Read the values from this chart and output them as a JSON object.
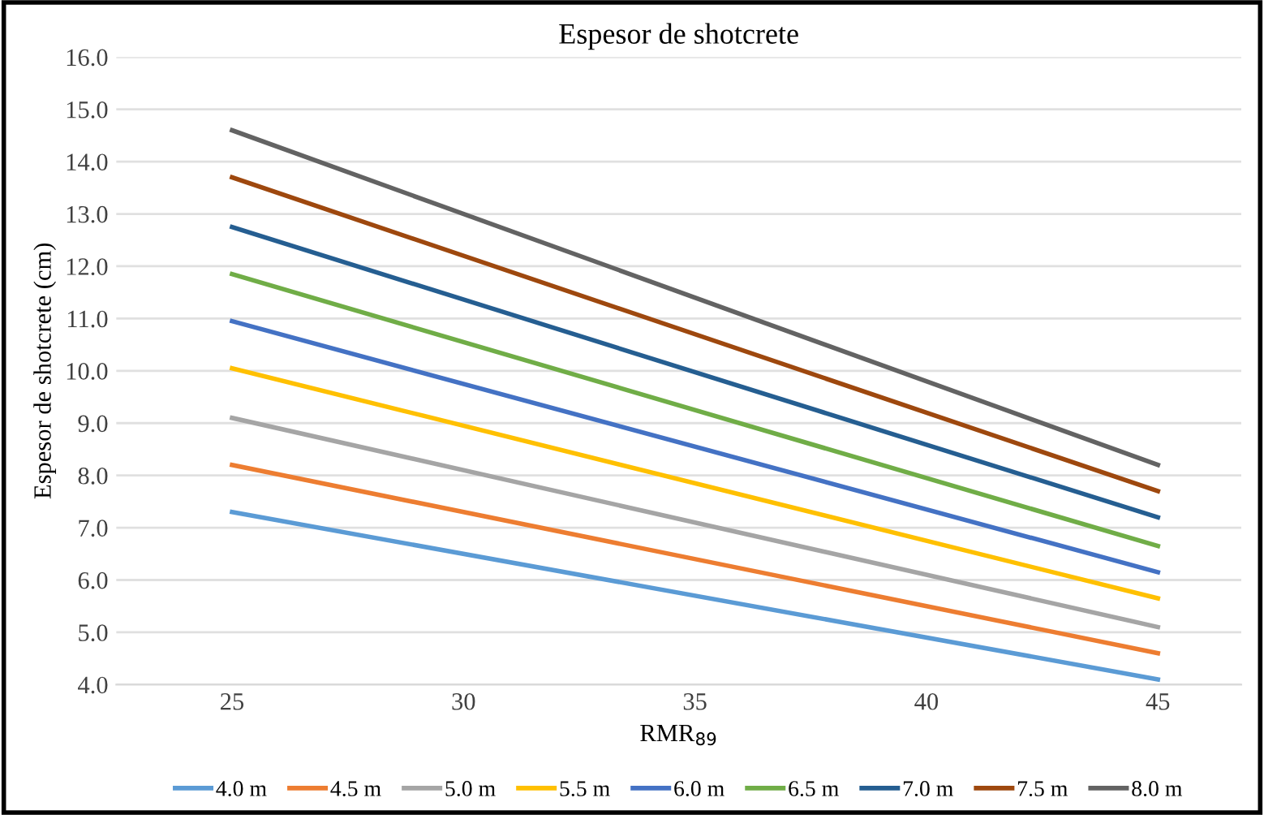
{
  "chart_data": {
    "type": "line",
    "title": "Espesor de shotcrete",
    "xlabel": "RMR$_{89}$",
    "ylabel": "Espesor de shotcrete (cm)",
    "x": [
      25,
      45
    ],
    "series": [
      {
        "name": "4.0 m",
        "color": "#5b9bd5",
        "values": [
          7.3,
          4.1
        ]
      },
      {
        "name": "4.5 m",
        "color": "#ed7d31",
        "values": [
          8.2,
          4.6
        ]
      },
      {
        "name": "5.0 m",
        "color": "#a5a5a5",
        "values": [
          9.1,
          5.1
        ]
      },
      {
        "name": "5.5 m",
        "color": "#ffc000",
        "values": [
          10.05,
          5.65
        ]
      },
      {
        "name": "6.0 m",
        "color": "#4472c4",
        "values": [
          10.95,
          6.15
        ]
      },
      {
        "name": "6.5 m",
        "color": "#70ad47",
        "values": [
          11.85,
          6.65
        ]
      },
      {
        "name": "7.0 m",
        "color": "#255e91",
        "values": [
          12.75,
          7.2
        ]
      },
      {
        "name": "7.5 m",
        "color": "#9e480e",
        "values": [
          13.7,
          7.7
        ]
      },
      {
        "name": "8.0 m",
        "color": "#636363",
        "values": [
          14.6,
          8.2
        ]
      }
    ],
    "xlim": [
      22.5,
      46.8
    ],
    "xticks": [
      25,
      30,
      35,
      40,
      45
    ],
    "ylim": [
      4.0,
      16.0
    ],
    "yticks": [
      {
        "value": 4,
        "label": "4.0"
      },
      {
        "value": 5,
        "label": "5.0"
      },
      {
        "value": 6,
        "label": "6.0"
      },
      {
        "value": 7,
        "label": "7.0"
      },
      {
        "value": 8,
        "label": "8.0"
      },
      {
        "value": 9,
        "label": "9.0"
      },
      {
        "value": 10,
        "label": "10.0"
      },
      {
        "value": 11,
        "label": "11.0"
      },
      {
        "value": 12,
        "label": "12.0"
      },
      {
        "value": 13,
        "label": "13.0"
      },
      {
        "value": 14,
        "label": "14.0"
      },
      {
        "value": 15,
        "label": "15.0"
      },
      {
        "value": 16,
        "label": "16.0"
      }
    ],
    "grid": "y",
    "legend": "bottom",
    "marker": "none",
    "line_style": "solid"
  }
}
